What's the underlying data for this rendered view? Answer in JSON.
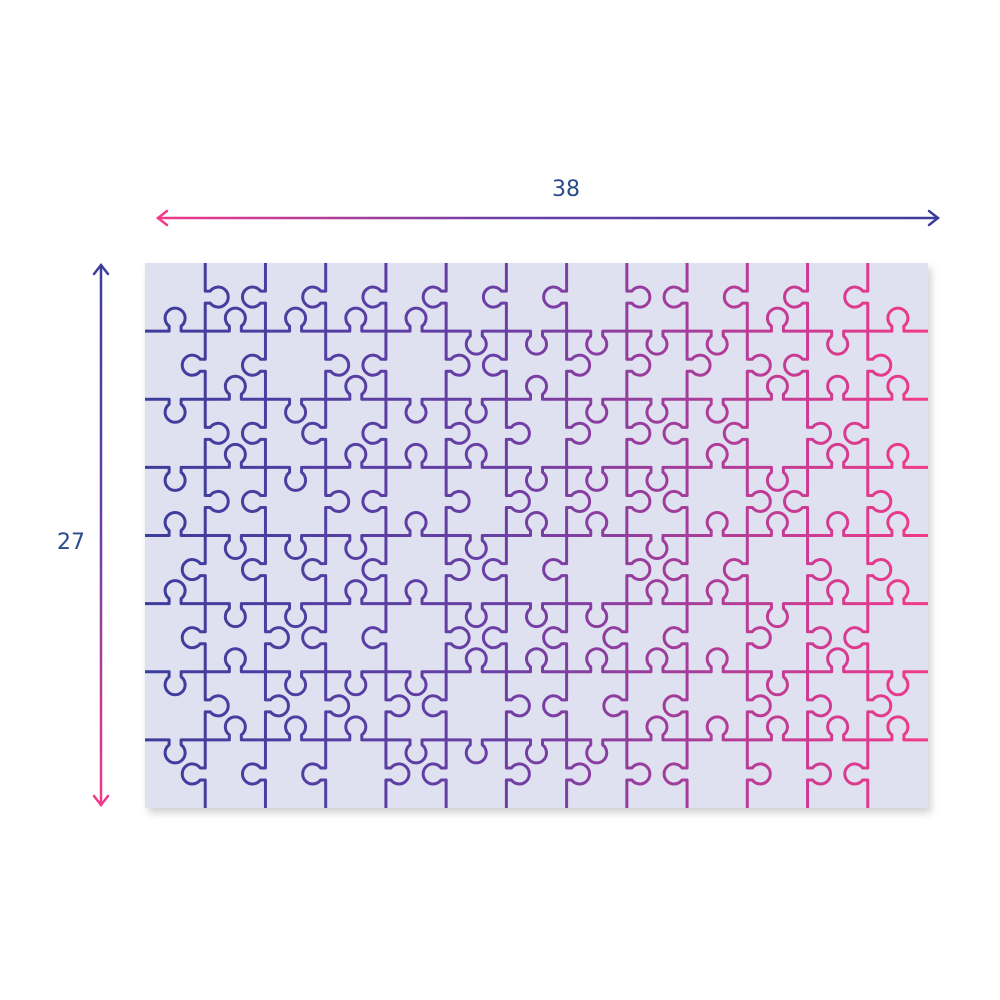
{
  "dimensions": {
    "width_label": "38",
    "height_label": "27"
  },
  "puzzle": {
    "columns": 13,
    "rows": 8
  },
  "colors": {
    "background": "#ffffff",
    "puzzle_fill": "#dfe1f0",
    "line_start": "#3b3d9c",
    "line_mid": "#6a3fa6",
    "line_end": "#f23a8a",
    "label": "#2b4a8c"
  }
}
